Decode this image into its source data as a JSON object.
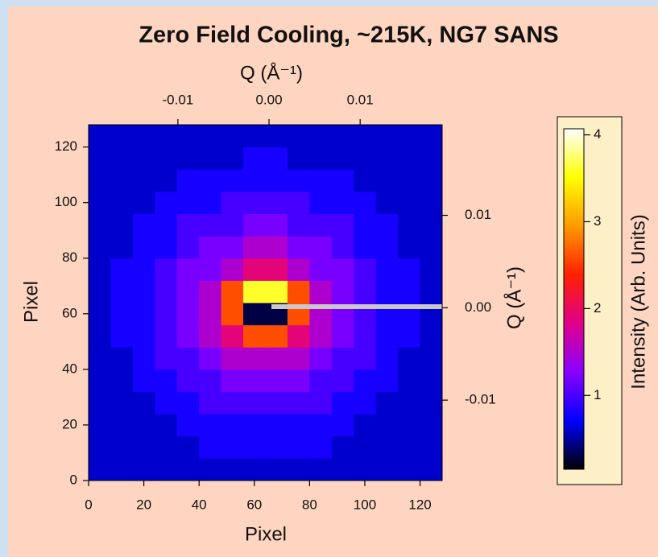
{
  "chart_data": {
    "type": "heatmap",
    "title": "Zero Field Cooling, ~215K, NG7 SANS",
    "xlabel": "Pixel",
    "ylabel": "Pixel",
    "x2label": "Q (Å⁻¹)",
    "y2label": "Q (Å⁻¹)",
    "colorbar_label": "Intensity (Arb. Units)",
    "xlim": [
      0,
      128
    ],
    "ylim": [
      0,
      128
    ],
    "xticks": [
      0,
      20,
      40,
      60,
      80,
      100,
      120
    ],
    "yticks": [
      0,
      20,
      40,
      60,
      80,
      100,
      120
    ],
    "x2lim": [
      -0.0198,
      0.019
    ],
    "x2ticks": [
      -0.01,
      {
        "value": 0,
        "label": "0.00"
      },
      0.01
    ],
    "y2lim": [
      -0.0187,
      0.0198
    ],
    "y2ticks": [
      -0.01,
      {
        "value": 0,
        "label": "0.00"
      },
      0.01
    ],
    "zlim": [
      0.15,
      4.07
    ],
    "zticks": [
      1,
      2,
      3,
      4
    ],
    "colormap": [
      "#000000",
      "#0000ff",
      "#8a00ff",
      "#e0008a",
      "#ff2000",
      "#ff9a00",
      "#ffff00",
      "#ffffff"
    ],
    "z": [
      [
        0.6,
        0.6,
        0.6,
        0.6,
        0.6,
        0.6,
        0.6,
        0.6,
        0.6,
        0.6,
        0.6,
        0.6,
        0.6,
        0.6,
        0.6,
        0.6
      ],
      [
        0.6,
        0.6,
        0.6,
        0.6,
        0.6,
        0.8,
        0.8,
        0.8,
        0.8,
        0.8,
        0.8,
        0.6,
        0.6,
        0.6,
        0.6,
        0.6
      ],
      [
        0.6,
        0.6,
        0.6,
        0.6,
        0.8,
        0.8,
        0.8,
        0.8,
        0.8,
        0.8,
        0.8,
        0.8,
        0.6,
        0.6,
        0.6,
        0.6
      ],
      [
        0.6,
        0.6,
        0.6,
        0.8,
        0.8,
        1,
        1,
        1,
        1,
        1,
        1,
        0.8,
        0.8,
        0.6,
        0.6,
        0.6
      ],
      [
        0.6,
        0.6,
        0.8,
        0.8,
        1,
        1,
        1.2,
        1.2,
        1.2,
        1.2,
        1,
        1,
        0.8,
        0.8,
        0.6,
        0.6
      ],
      [
        0.6,
        0.6,
        0.8,
        1,
        1,
        1.2,
        1.5,
        1.5,
        1.5,
        1.5,
        1.2,
        1,
        1,
        0.8,
        0.6,
        0.6
      ],
      [
        0.6,
        0.8,
        0.8,
        1,
        1.2,
        1.5,
        1.9,
        2.6,
        2.6,
        1.9,
        1.5,
        1.2,
        1,
        0.8,
        0.8,
        0.6
      ],
      [
        0.6,
        0.8,
        0.8,
        1,
        1.2,
        1.5,
        2.6,
        0.3,
        0.3,
        2.6,
        1.5,
        1.2,
        1,
        0.8,
        0.8,
        0.6
      ],
      [
        0.6,
        0.8,
        0.8,
        1,
        1.2,
        1.5,
        2.6,
        3.6,
        3.6,
        2.6,
        1.5,
        1.2,
        1,
        0.8,
        0.8,
        0.6
      ],
      [
        0.6,
        0.8,
        0.8,
        1,
        1.2,
        1.2,
        1.5,
        1.9,
        1.9,
        1.5,
        1.2,
        1.2,
        1,
        0.8,
        0.8,
        0.6
      ],
      [
        0.6,
        0.6,
        0.8,
        0.8,
        1,
        1.2,
        1.2,
        1.5,
        1.5,
        1.2,
        1.2,
        1,
        0.8,
        0.8,
        0.6,
        0.6
      ],
      [
        0.6,
        0.6,
        0.8,
        0.8,
        1,
        1,
        1,
        1.2,
        1.2,
        1,
        1,
        1,
        0.8,
        0.8,
        0.6,
        0.6
      ],
      [
        0.6,
        0.6,
        0.6,
        0.8,
        0.8,
        0.8,
        1,
        1,
        1,
        1,
        0.8,
        0.8,
        0.8,
        0.6,
        0.6,
        0.6
      ],
      [
        0.6,
        0.6,
        0.6,
        0.6,
        0.8,
        0.8,
        0.8,
        0.8,
        0.8,
        0.8,
        0.8,
        0.8,
        0.6,
        0.6,
        0.6,
        0.6
      ],
      [
        0.6,
        0.6,
        0.6,
        0.6,
        0.6,
        0.6,
        0.6,
        0.8,
        0.8,
        0.6,
        0.6,
        0.6,
        0.6,
        0.6,
        0.6,
        0.6
      ],
      [
        0.6,
        0.6,
        0.6,
        0.6,
        0.6,
        0.6,
        0.6,
        0.6,
        0.6,
        0.6,
        0.6,
        0.6,
        0.6,
        0.6,
        0.6,
        0.6
      ]
    ]
  }
}
